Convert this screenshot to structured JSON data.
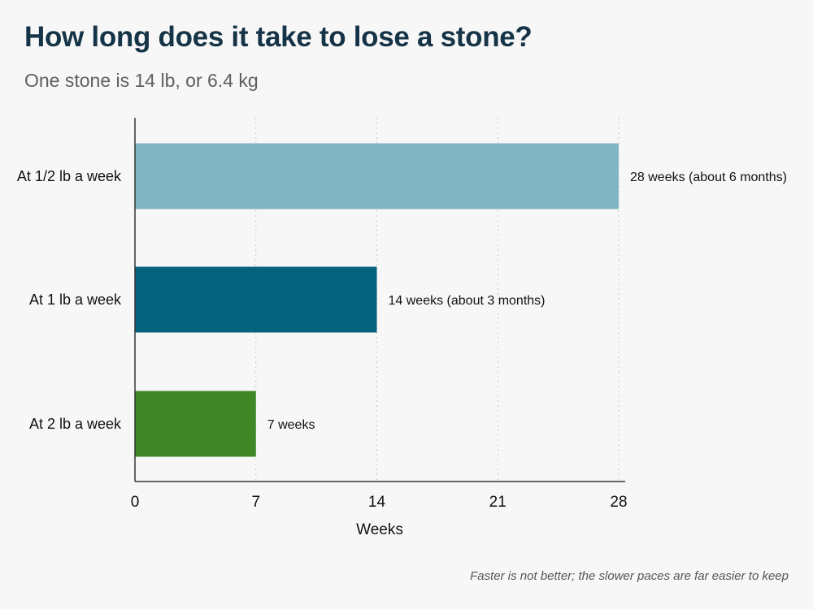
{
  "title": "How long does it take to lose a stone?",
  "subtitle": "One stone is 14 lb, or 6.4 kg",
  "footnote": "Faster is not better; the slower paces are far easier to keep",
  "chart_data": {
    "type": "bar",
    "orientation": "horizontal",
    "title": "How long does it take to lose a stone?",
    "subtitle": "One stone is 14 lb, or 6.4 kg",
    "xlabel": "Weeks",
    "ylabel": "",
    "xlim": [
      0,
      28
    ],
    "xticks": [
      0,
      7,
      14,
      21,
      28
    ],
    "grid": "vertical dotted",
    "legend": "none",
    "categories": [
      "At 1/2 lb a week",
      "At 1 lb a week",
      "At 2 lb a week"
    ],
    "values": [
      28,
      14,
      7
    ],
    "data_labels": [
      "28 weeks (about 6 months)",
      "14 weeks (about 3 months)",
      "7 weeks"
    ],
    "colors": [
      "#82b5c4",
      "#05627f",
      "#3e8626"
    ]
  }
}
